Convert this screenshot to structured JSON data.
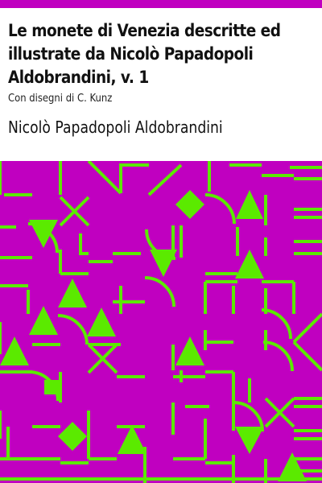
{
  "cover": {
    "title": "Le monete di Venezia descritte ed illustrate da Nicolò Papadopoli Aldobrandini, v. 1",
    "subtitle": "Con disegni di C. Kunz",
    "author": "Nicolò Papadopoli Aldobrandini"
  },
  "colors": {
    "accent_bar": "#c000c0",
    "pattern_background": "#c000c0",
    "pattern_shapes": "#5bea00"
  }
}
